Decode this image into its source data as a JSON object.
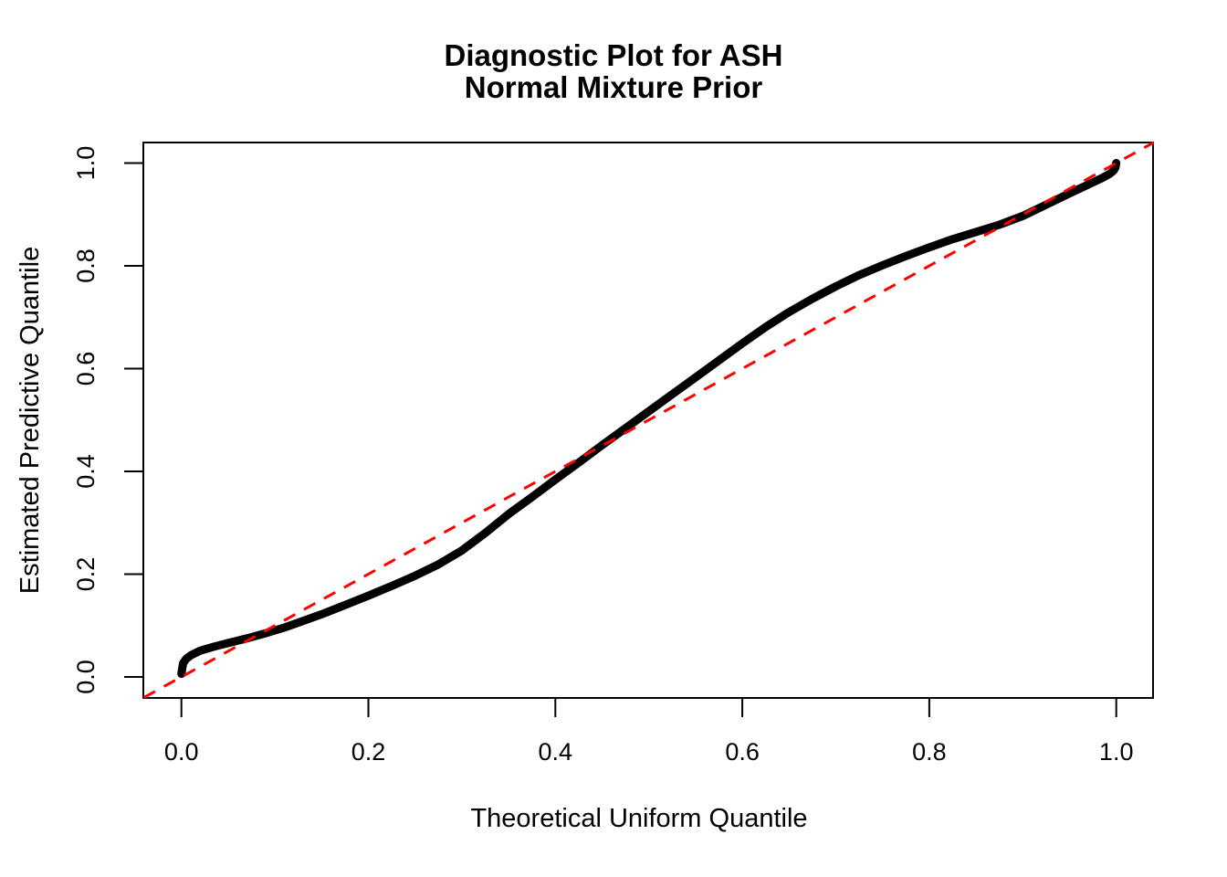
{
  "figure": {
    "title_line1": "Diagnostic Plot for ASH",
    "title_line2": "Normal Mixture Prior"
  },
  "axes": {
    "x_label": "Theoretical Uniform Quantile",
    "y_label": "Estimated Predictive Quantile",
    "x_tick_labels": [
      "0.0",
      "0.2",
      "0.4",
      "0.6",
      "0.8",
      "1.0"
    ],
    "y_tick_labels": [
      "0.0",
      "0.2",
      "0.4",
      "0.6",
      "0.8",
      "1.0"
    ]
  },
  "colors": {
    "curve": "#000000",
    "reference_line": "#FF0000",
    "background": "#FFFFFF",
    "text": "#000000"
  },
  "chart_data": {
    "type": "line",
    "title": "Diagnostic Plot for ASH",
    "subtitle": "Normal Mixture Prior",
    "xlabel": "Theoretical Uniform Quantile",
    "ylabel": "Estimated Predictive Quantile",
    "xlim": [
      -0.04,
      1.04
    ],
    "ylim": [
      -0.04,
      1.04
    ],
    "x_tick_values": [
      0.0,
      0.2,
      0.4,
      0.6,
      0.8,
      1.0
    ],
    "y_tick_values": [
      0.0,
      0.2,
      0.4,
      0.6,
      0.8,
      1.0
    ],
    "grid": false,
    "legend": false,
    "reference_line": {
      "meaning": "identity line y = x",
      "style": "dashed",
      "color": "#FF0000",
      "stroke_width": 3,
      "from": [
        -0.04,
        -0.04
      ],
      "to": [
        1.04,
        1.04
      ]
    },
    "series": [
      {
        "name": "Estimated predictive quantile vs theoretical uniform quantile (QQ curve)",
        "style": "solid",
        "color": "#000000",
        "stroke_width": 9,
        "points": [
          [
            0.0,
            0.006
          ],
          [
            0.001,
            0.018
          ],
          [
            0.002,
            0.027
          ],
          [
            0.005,
            0.035
          ],
          [
            0.01,
            0.042
          ],
          [
            0.02,
            0.051
          ],
          [
            0.035,
            0.059
          ],
          [
            0.05,
            0.066
          ],
          [
            0.07,
            0.075
          ],
          [
            0.09,
            0.085
          ],
          [
            0.11,
            0.096
          ],
          [
            0.13,
            0.109
          ],
          [
            0.15,
            0.122
          ],
          [
            0.175,
            0.14
          ],
          [
            0.2,
            0.158
          ],
          [
            0.225,
            0.177
          ],
          [
            0.25,
            0.197
          ],
          [
            0.275,
            0.219
          ],
          [
            0.3,
            0.246
          ],
          [
            0.325,
            0.28
          ],
          [
            0.35,
            0.317
          ],
          [
            0.375,
            0.35
          ],
          [
            0.4,
            0.384
          ],
          [
            0.425,
            0.417
          ],
          [
            0.45,
            0.451
          ],
          [
            0.475,
            0.484
          ],
          [
            0.5,
            0.517
          ],
          [
            0.525,
            0.55
          ],
          [
            0.55,
            0.583
          ],
          [
            0.575,
            0.616
          ],
          [
            0.6,
            0.649
          ],
          [
            0.625,
            0.681
          ],
          [
            0.65,
            0.71
          ],
          [
            0.675,
            0.736
          ],
          [
            0.7,
            0.76
          ],
          [
            0.725,
            0.782
          ],
          [
            0.75,
            0.801
          ],
          [
            0.775,
            0.819
          ],
          [
            0.8,
            0.836
          ],
          [
            0.825,
            0.852
          ],
          [
            0.85,
            0.866
          ],
          [
            0.875,
            0.88
          ],
          [
            0.9,
            0.897
          ],
          [
            0.925,
            0.919
          ],
          [
            0.95,
            0.941
          ],
          [
            0.97,
            0.958
          ],
          [
            0.985,
            0.971
          ],
          [
            0.993,
            0.979
          ],
          [
            0.997,
            0.985
          ],
          [
            0.999,
            0.991
          ],
          [
            1.0,
            1.0
          ]
        ]
      }
    ]
  }
}
